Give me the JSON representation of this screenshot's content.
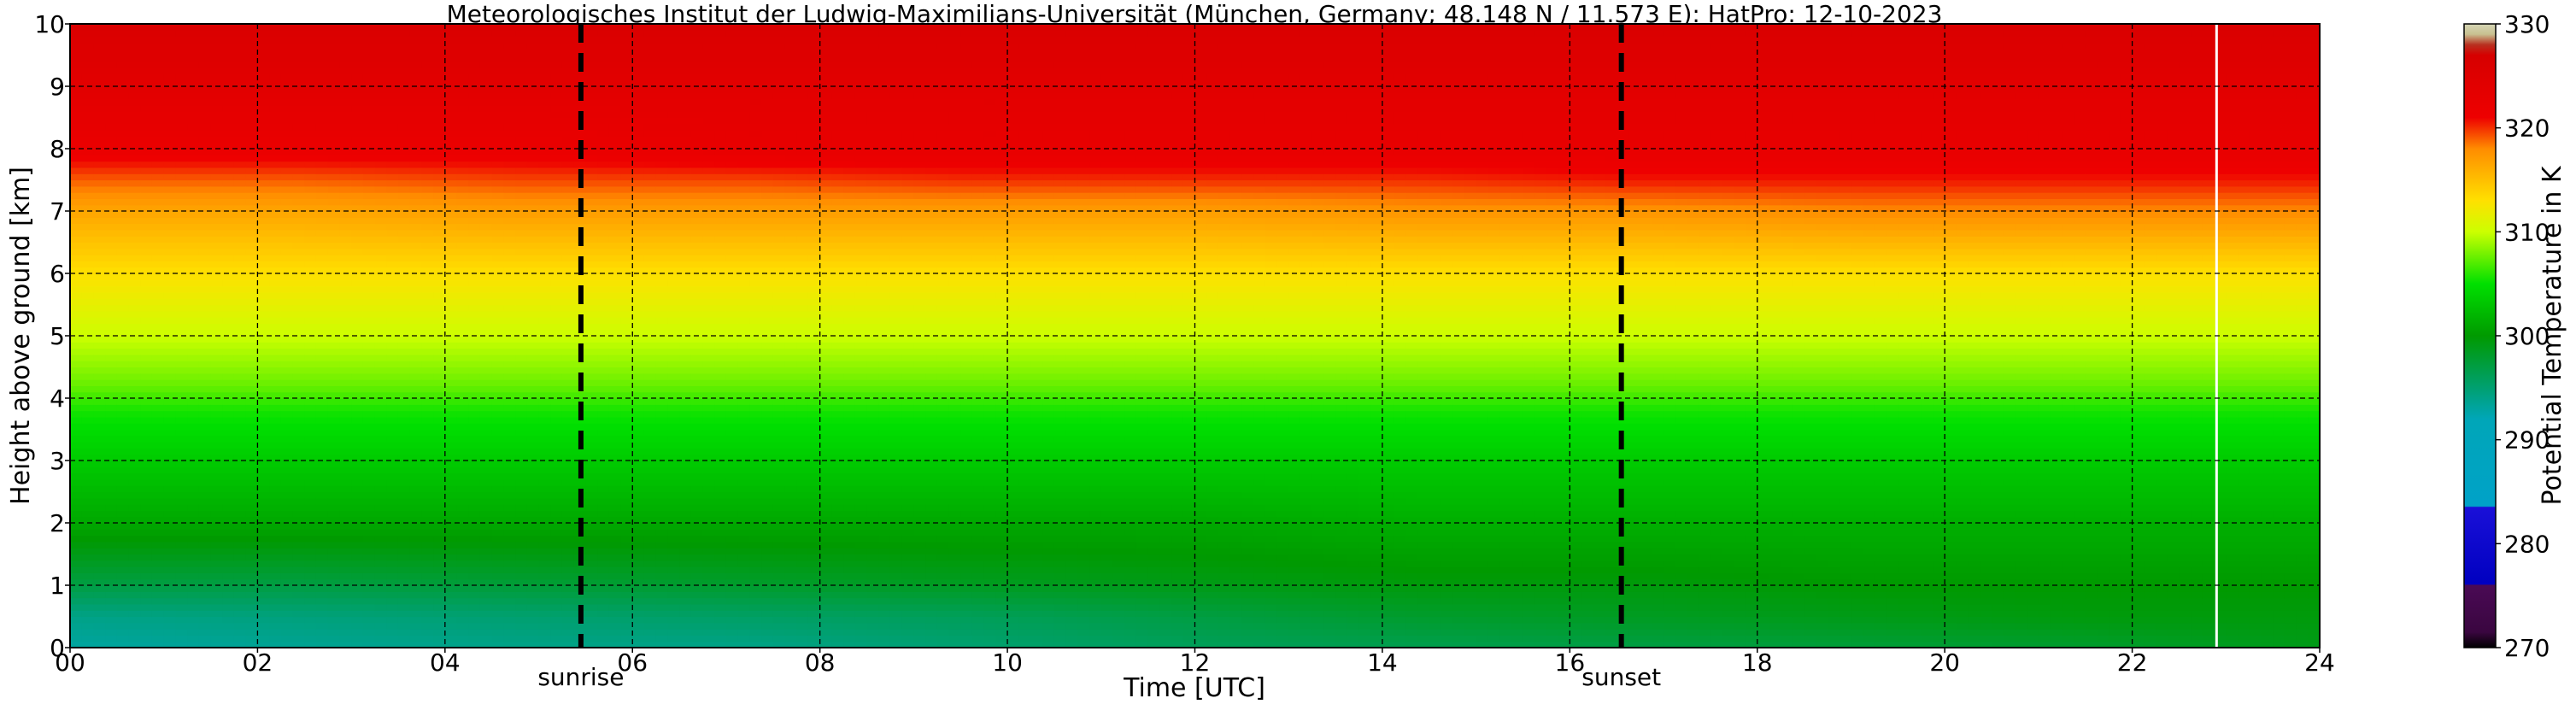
{
  "chart_data": {
    "type": "heatmap",
    "title": "Meteorologisches Institut der Ludwig-Maximilians-Universität (München, Germany; 48.148 N / 11.573 E):    HatPro: 12-10-2023",
    "xlabel": "Time [UTC]",
    "ylabel": "Height above ground [km]",
    "xlim": [
      0,
      24
    ],
    "ylim": [
      0,
      10
    ],
    "x_ticks": [
      "00",
      "02",
      "04",
      "06",
      "08",
      "10",
      "12",
      "14",
      "16",
      "18",
      "20",
      "22",
      "24"
    ],
    "y_ticks": [
      "0",
      "1",
      "2",
      "3",
      "4",
      "5",
      "6",
      "7",
      "8",
      "9",
      "10"
    ],
    "grid": true,
    "colorbar": {
      "label": "Potential Temperature in K",
      "min": 270,
      "max": 330,
      "ticks": [
        "270",
        "280",
        "290",
        "300",
        "310",
        "320",
        "330"
      ],
      "stops": [
        {
          "value": 270,
          "color": "#000000"
        },
        {
          "value": 271.5,
          "color": "#3a0640"
        },
        {
          "value": 276,
          "color": "#4a0a55"
        },
        {
          "value": 276.1,
          "color": "#0000c0"
        },
        {
          "value": 283.5,
          "color": "#1a10d8"
        },
        {
          "value": 283.6,
          "color": "#00a2c8"
        },
        {
          "value": 292,
          "color": "#00a6b8"
        },
        {
          "value": 295,
          "color": "#00a070"
        },
        {
          "value": 300,
          "color": "#009a00"
        },
        {
          "value": 305,
          "color": "#00e000"
        },
        {
          "value": 310,
          "color": "#ccff00"
        },
        {
          "value": 313,
          "color": "#ffe000"
        },
        {
          "value": 318,
          "color": "#ff8c00"
        },
        {
          "value": 321,
          "color": "#ee0000"
        },
        {
          "value": 327,
          "color": "#d60000"
        },
        {
          "value": 328,
          "color": "#b83020"
        },
        {
          "value": 329,
          "color": "#c8c090"
        },
        {
          "value": 330,
          "color": "#d6d6b6"
        }
      ]
    },
    "annotations": [
      {
        "label": "sunrise",
        "time": 5.45
      },
      {
        "label": "sunset",
        "time": 16.55
      }
    ],
    "series": [
      {
        "height_km": 0.0,
        "theta_K": [
          293,
          293.5,
          294,
          294,
          295,
          296,
          296.5,
          297,
          297.5,
          298,
          299
        ]
      },
      {
        "height_km": 0.5,
        "theta_K": [
          294,
          294.5,
          295,
          295.5,
          296,
          297,
          298,
          298.5,
          299,
          299.5,
          299.5
        ]
      },
      {
        "height_km": 1.0,
        "theta_K": [
          297,
          297,
          297.5,
          298,
          298.5,
          299,
          299.5,
          299.5,
          300,
          300,
          300
        ]
      },
      {
        "height_km": 2.0,
        "theta_K": [
          301,
          301,
          301,
          301,
          301,
          301,
          301.5,
          301.5,
          301.5,
          301.5,
          301.5
        ]
      },
      {
        "height_km": 3.0,
        "theta_K": [
          303.5,
          303.5,
          303.5,
          303.5,
          303.5,
          303.5,
          303.5,
          303.5,
          303.5,
          303.5,
          303.5
        ]
      },
      {
        "height_km": 3.8,
        "theta_K": [
          305.5,
          305.5,
          305.5,
          305.5,
          305.5,
          305.5,
          305.5,
          305.5,
          305.5,
          305.5,
          305.5
        ]
      },
      {
        "height_km": 4.2,
        "theta_K": [
          307.5,
          307.5,
          307.5,
          307.5,
          307.5,
          307.5,
          307.5,
          307.5,
          307.5,
          307.5,
          307.5
        ]
      },
      {
        "height_km": 5.0,
        "theta_K": [
          310,
          310,
          310,
          310,
          310,
          310,
          310,
          310,
          310,
          310,
          310
        ]
      },
      {
        "height_km": 6.0,
        "theta_K": [
          313,
          313,
          313,
          313,
          313,
          313,
          313,
          313,
          313,
          313,
          313
        ]
      },
      {
        "height_km": 7.0,
        "theta_K": [
          316.5,
          316.5,
          317,
          317,
          317,
          317,
          317.5,
          317.5,
          318,
          318,
          318
        ]
      },
      {
        "height_km": 7.5,
        "theta_K": [
          319,
          319,
          319.5,
          319.5,
          320,
          320,
          320,
          320.5,
          320.5,
          320.5,
          320.5
        ]
      },
      {
        "height_km": 8.0,
        "theta_K": [
          322,
          322,
          322,
          322.5,
          322.5,
          322.5,
          322.5,
          322.5,
          322.5,
          322.5,
          322.5
        ]
      },
      {
        "height_km": 9.0,
        "theta_K": [
          324,
          324,
          324,
          324,
          324,
          324,
          324,
          324,
          324,
          324,
          324
        ]
      },
      {
        "height_km": 10.0,
        "theta_K": [
          326,
          326,
          326,
          326,
          326,
          326,
          326,
          326,
          326,
          326,
          326
        ]
      }
    ],
    "series_times_h": [
      0,
      2.4,
      4.8,
      7.2,
      9.6,
      12,
      14.4,
      16.8,
      19.2,
      21.6,
      24
    ],
    "data_gap_time_h": 22.9
  }
}
